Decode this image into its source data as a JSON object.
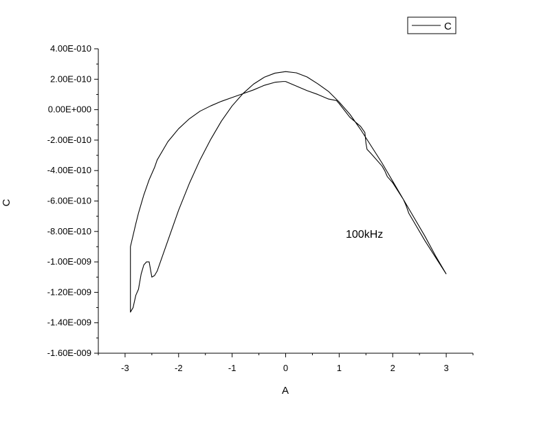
{
  "chart_data": {
    "type": "line",
    "xlabel": "A",
    "ylabel": "C",
    "xlim": [
      -3.5,
      3.5
    ],
    "ylim": [
      -1.6e-09,
      4e-10
    ],
    "x_ticks": [
      -3,
      -2,
      -1,
      0,
      1,
      2,
      3
    ],
    "x_tick_labels": [
      "-3",
      "-2",
      "-1",
      "0",
      "1",
      "2",
      "3"
    ],
    "y_ticks": [
      4e-10,
      2e-10,
      0,
      -2e-10,
      -4e-10,
      -6e-10,
      -8e-10,
      -1e-09,
      -1.2e-09,
      -1.4e-09,
      -1.6e-09
    ],
    "y_tick_labels": [
      "4.00E-010",
      "2.00E-010",
      "0.00E+000",
      "-2.00E-010",
      "-4.00E-010",
      "-6.00E-010",
      "-8.00E-010",
      "-1.00E-009",
      "-1.20E-009",
      "-1.40E-009",
      "-1.60E-009"
    ],
    "grid": false,
    "legend_position": "top-right",
    "annotation": "100kHz",
    "series": [
      {
        "name": "C",
        "color": "#000000",
        "x": [
          3.0,
          2.8,
          2.6,
          2.4,
          2.2,
          2.0,
          1.8,
          1.6,
          1.4,
          1.2,
          1.0,
          0.8,
          0.6,
          0.4,
          0.2,
          0.0,
          -0.2,
          -0.4,
          -0.6,
          -0.8,
          -1.0,
          -1.2,
          -1.4,
          -1.6,
          -1.8,
          -2.0,
          -2.2,
          -2.4,
          -2.45,
          -2.5,
          -2.55,
          -2.6,
          -2.65,
          -2.7,
          -2.75,
          -2.8,
          -2.85,
          -2.9,
          -2.9,
          -2.8,
          -2.75,
          -2.7,
          -2.65,
          -2.6,
          -2.55,
          -2.5,
          -2.45,
          -2.4,
          -2.2,
          -2.0,
          -1.8,
          -1.6,
          -1.4,
          -1.2,
          -1.0,
          -0.8,
          -0.6,
          -0.4,
          -0.2,
          -0.05,
          0.0,
          0.2,
          0.4,
          0.6,
          0.8,
          0.95,
          1.0,
          1.2,
          1.4,
          1.48,
          1.5,
          1.52,
          1.6,
          1.8,
          1.85,
          1.9,
          2.0,
          2.2,
          2.25,
          2.3,
          2.4,
          2.6,
          2.8,
          3.0
        ],
        "y": [
          -1.08e-09,
          -9.6e-10,
          -8.3e-10,
          -7.1e-10,
          -5.9e-10,
          -4.7e-10,
          -3.5e-10,
          -2.4e-10,
          -1.3e-10,
          -3e-11,
          5e-11,
          1.2e-10,
          1.7e-10,
          2.15e-10,
          2.42e-10,
          2.5e-10,
          2.4e-10,
          2.13e-10,
          1.68e-10,
          1.05e-10,
          2.5e-11,
          -7.5e-11,
          -1.95e-10,
          -3.3e-10,
          -4.85e-10,
          -6.6e-10,
          -8.6e-10,
          -1.06e-09,
          -1.09e-09,
          -1.1e-09,
          -1e-09,
          -1e-09,
          -1.02e-09,
          -1.08e-09,
          -1.18e-09,
          -1.22e-09,
          -1.3e-09,
          -1.33e-09,
          -9e-10,
          -7.5e-10,
          -6.8e-10,
          -6.2e-10,
          -5.6e-10,
          -5.1e-10,
          -4.6e-10,
          -4.2e-10,
          -3.8e-10,
          -3.3e-10,
          -2.1e-10,
          -1.25e-10,
          -6e-11,
          -1e-11,
          2.5e-11,
          5.5e-11,
          8e-11,
          1.05e-10,
          1.3e-10,
          1.6e-10,
          1.8e-10,
          1.85e-10,
          1.85e-10,
          1.55e-10,
          1.25e-10,
          1e-10,
          7e-11,
          6e-11,
          4e-11,
          -5e-11,
          -1.1e-10,
          -1.5e-10,
          -2.2e-10,
          -2.6e-10,
          -2.9e-10,
          -3.7e-10,
          -4e-10,
          -4.4e-10,
          -4.8e-10,
          -5.9e-10,
          -6.3e-10,
          -6.8e-10,
          -7.4e-10,
          -8.6e-10,
          -9.7e-10,
          -1.08e-09
        ]
      }
    ]
  }
}
